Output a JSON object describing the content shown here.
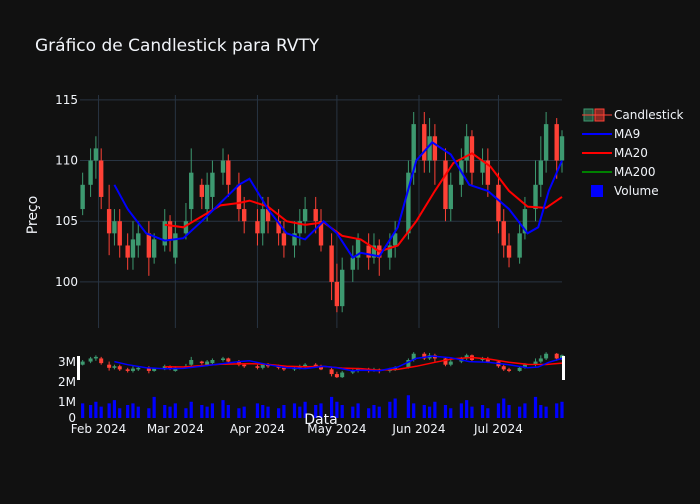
{
  "chart_data": {
    "type": "candlestick",
    "title": "Gráfico de Candlestick para RVTY",
    "ylabel": "Preço",
    "xlabel": "Data",
    "ylim": [
      96.2,
      115.4
    ],
    "y_ticks": [
      100,
      105,
      110,
      115
    ],
    "x_ticks": [
      "Feb 2024",
      "Mar 2024",
      "Apr 2024",
      "May 2024",
      "Jun 2024",
      "Jul 2024"
    ],
    "range_y_ticks": [
      "3M",
      "2M"
    ],
    "volume_y_ticks": [
      "1M",
      "0"
    ],
    "legend": [
      "Candlestick",
      "MA9",
      "MA20",
      "MA200",
      "Volume"
    ],
    "colors": {
      "up": "#3d9970",
      "down": "#ff4136",
      "ma9": "#0000ff",
      "ma20": "#ff0000",
      "ma200": "#008000",
      "volume": "#0000ff",
      "bg": "#111111",
      "grid": "#283442"
    },
    "x_domain": [
      "2024-01-25",
      "2024-07-25"
    ],
    "ma9": [
      [
        "2024-02-07",
        108
      ],
      [
        "2024-02-12",
        106
      ],
      [
        "2024-02-19",
        104
      ],
      [
        "2024-02-26",
        103.4
      ],
      [
        "2024-03-04",
        103.6
      ],
      [
        "2024-03-11",
        105
      ],
      [
        "2024-03-18",
        106.5
      ],
      [
        "2024-03-25",
        108
      ],
      [
        "2024-03-29",
        108.5
      ],
      [
        "2024-04-05",
        106
      ],
      [
        "2024-04-12",
        104
      ],
      [
        "2024-04-19",
        103.5
      ],
      [
        "2024-04-26",
        105
      ],
      [
        "2024-05-01",
        104
      ],
      [
        "2024-05-07",
        102
      ],
      [
        "2024-05-10",
        102.4
      ],
      [
        "2024-05-17",
        102.1
      ],
      [
        "2024-05-24",
        104.5
      ],
      [
        "2024-05-31",
        110
      ],
      [
        "2024-06-06",
        111.5
      ],
      [
        "2024-06-13",
        110.5
      ],
      [
        "2024-06-20",
        108
      ],
      [
        "2024-06-27",
        107.5
      ],
      [
        "2024-07-05",
        106
      ],
      [
        "2024-07-12",
        104
      ],
      [
        "2024-07-16",
        104.5
      ],
      [
        "2024-07-20",
        107.5
      ],
      [
        "2024-07-25",
        110
      ]
    ],
    "ma20": [
      [
        "2024-02-26",
        104.7
      ],
      [
        "2024-03-04",
        104.5
      ],
      [
        "2024-03-11",
        105.4
      ],
      [
        "2024-03-18",
        106.3
      ],
      [
        "2024-03-25",
        106.5
      ],
      [
        "2024-03-29",
        106.7
      ],
      [
        "2024-04-05",
        106.2
      ],
      [
        "2024-04-12",
        105
      ],
      [
        "2024-04-19",
        104.7
      ],
      [
        "2024-04-26",
        104.9
      ],
      [
        "2024-05-03",
        103.8
      ],
      [
        "2024-05-10",
        103.5
      ],
      [
        "2024-05-17",
        102.5
      ],
      [
        "2024-05-24",
        103
      ],
      [
        "2024-05-31",
        105
      ],
      [
        "2024-06-07",
        107.5
      ],
      [
        "2024-06-14",
        109.8
      ],
      [
        "2024-06-21",
        110.6
      ],
      [
        "2024-06-28",
        109.5
      ],
      [
        "2024-07-05",
        107.5
      ],
      [
        "2024-07-12",
        106.2
      ],
      [
        "2024-07-19",
        106.1
      ],
      [
        "2024-07-25",
        107
      ]
    ],
    "candles": [
      [
        "2024-01-26",
        106,
        108,
        109,
        105.5
      ],
      [
        "2024-01-29",
        108,
        110,
        111,
        107
      ],
      [
        "2024-01-31",
        110,
        111,
        112,
        108.5
      ],
      [
        "2024-02-02",
        110,
        107,
        111,
        106
      ],
      [
        "2024-02-05",
        106,
        104,
        108,
        102.2
      ],
      [
        "2024-02-07",
        104,
        105,
        106,
        103
      ],
      [
        "2024-02-09",
        105,
        103,
        106,
        102
      ],
      [
        "2024-02-12",
        103,
        102,
        104,
        101
      ],
      [
        "2024-02-14",
        102,
        103.5,
        105,
        101
      ],
      [
        "2024-02-16",
        103,
        104,
        105,
        102
      ],
      [
        "2024-02-20",
        104,
        102,
        105,
        100.5
      ],
      [
        "2024-02-22",
        102,
        103.5,
        104,
        101.5
      ],
      [
        "2024-02-26",
        103,
        105,
        106,
        102.5
      ],
      [
        "2024-02-28",
        105,
        103.5,
        105.5,
        102.5
      ],
      [
        "2024-03-01",
        102,
        104,
        105,
        101.5
      ],
      [
        "2024-03-05",
        104,
        105,
        106.5,
        103.5
      ],
      [
        "2024-03-07",
        106,
        109,
        111,
        105
      ],
      [
        "2024-03-11",
        108,
        107,
        108.5,
        106
      ],
      [
        "2024-03-13",
        106,
        108,
        109,
        105
      ],
      [
        "2024-03-15",
        107,
        109,
        110,
        106
      ],
      [
        "2024-03-19",
        109,
        110,
        111,
        108
      ],
      [
        "2024-03-21",
        110,
        108,
        110.5,
        107
      ],
      [
        "2024-03-25",
        108,
        106,
        109,
        105
      ],
      [
        "2024-03-27",
        106,
        105,
        107,
        104
      ],
      [
        "2024-04-01",
        105,
        104,
        106,
        103
      ],
      [
        "2024-04-03",
        104,
        106,
        107,
        103
      ],
      [
        "2024-04-05",
        106,
        105,
        107,
        104
      ],
      [
        "2024-04-09",
        105,
        104,
        106,
        103
      ],
      [
        "2024-04-11",
        104,
        103,
        105,
        102
      ],
      [
        "2024-04-15",
        103,
        104,
        105,
        102
      ],
      [
        "2024-04-17",
        104,
        105,
        106,
        103
      ],
      [
        "2024-04-19",
        105,
        106,
        107,
        104
      ],
      [
        "2024-04-23",
        106,
        105,
        107,
        104
      ],
      [
        "2024-04-25",
        105,
        103,
        106,
        102.5
      ],
      [
        "2024-04-29",
        103,
        100,
        104,
        98.5
      ],
      [
        "2024-05-01",
        100,
        98,
        101.5,
        97.5
      ],
      [
        "2024-05-03",
        98,
        101,
        102,
        97.5
      ],
      [
        "2024-05-07",
        101,
        102,
        103,
        100
      ],
      [
        "2024-05-09",
        102,
        103.5,
        104,
        101
      ],
      [
        "2024-05-13",
        103,
        102,
        104,
        101
      ],
      [
        "2024-05-15",
        102,
        103,
        104,
        101.5
      ],
      [
        "2024-05-17",
        103,
        102,
        103.5,
        100.5
      ],
      [
        "2024-05-21",
        102,
        103,
        104,
        101
      ],
      [
        "2024-05-23",
        103,
        104,
        105,
        102
      ],
      [
        "2024-05-28",
        104,
        109,
        110,
        103.5
      ],
      [
        "2024-05-30",
        109,
        113,
        114,
        108
      ],
      [
        "2024-06-03",
        113,
        110,
        114,
        109
      ],
      [
        "2024-06-05",
        110,
        112,
        113.5,
        109
      ],
      [
        "2024-06-07",
        112,
        110,
        113,
        108
      ],
      [
        "2024-06-11",
        110,
        106,
        111,
        105
      ],
      [
        "2024-06-13",
        106,
        108,
        109,
        105
      ],
      [
        "2024-06-17",
        108,
        110,
        111,
        107
      ],
      [
        "2024-06-19",
        110,
        112,
        113,
        109
      ],
      [
        "2024-06-21",
        112,
        109,
        112.5,
        108
      ],
      [
        "2024-06-25",
        109,
        110,
        111,
        108
      ],
      [
        "2024-06-27",
        110,
        108,
        111,
        107
      ],
      [
        "2024-07-01",
        108,
        105,
        109,
        104
      ],
      [
        "2024-07-03",
        105,
        103,
        106,
        102
      ],
      [
        "2024-07-05",
        103,
        102,
        104,
        101.2
      ],
      [
        "2024-07-09",
        102,
        104,
        105,
        101.5
      ],
      [
        "2024-07-11",
        104,
        106,
        107,
        103.5
      ],
      [
        "2024-07-15",
        106,
        108,
        110,
        105
      ],
      [
        "2024-07-17",
        108,
        110,
        112,
        107
      ],
      [
        "2024-07-19",
        110,
        113,
        114,
        109
      ],
      [
        "2024-07-23",
        113,
        110,
        113.5,
        108.5
      ],
      [
        "2024-07-25",
        110,
        112,
        112.5,
        109
      ]
    ],
    "volume_millions": [
      0.9,
      0.8,
      1.0,
      0.7,
      0.9,
      1.1,
      0.6,
      0.8,
      0.9,
      0.7,
      0.6,
      1.3,
      0.8,
      0.7,
      0.9,
      0.6,
      1.0,
      0.8,
      0.7,
      0.9,
      1.1,
      0.8,
      0.6,
      0.7,
      0.9,
      0.8,
      0.7,
      0.6,
      0.8,
      0.9,
      0.7,
      1.0,
      0.8,
      0.9,
      1.3,
      1.0,
      0.8,
      0.7,
      0.9,
      0.6,
      0.8,
      0.7,
      1.0,
      1.2,
      1.4,
      0.9,
      0.8,
      0.7,
      1.0,
      0.8,
      0.6,
      0.9,
      1.1,
      0.7,
      0.8,
      0.6,
      0.9,
      1.2,
      0.8,
      0.7,
      0.9,
      1.3,
      0.8,
      0.7,
      0.9,
      1.0
    ],
    "volume_ylim": [
      0,
      1.6
    ]
  }
}
